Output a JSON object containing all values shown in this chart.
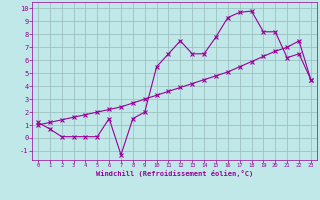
{
  "xlabel": "Windchill (Refroidissement éolien,°C)",
  "xlim": [
    -0.5,
    23.5
  ],
  "ylim": [
    -1.7,
    10.5
  ],
  "xticks": [
    0,
    1,
    2,
    3,
    4,
    5,
    6,
    7,
    8,
    9,
    10,
    11,
    12,
    13,
    14,
    15,
    16,
    17,
    18,
    19,
    20,
    21,
    22,
    23
  ],
  "yticks": [
    -1,
    0,
    1,
    2,
    3,
    4,
    5,
    6,
    7,
    8,
    9,
    10
  ],
  "bg_color": "#c0e8e8",
  "line_color": "#990099",
  "grid_color": "#99bbbb",
  "data_x": [
    0,
    1,
    2,
    3,
    4,
    5,
    6,
    7,
    8,
    9,
    10,
    11,
    12,
    13,
    14,
    15,
    16,
    17,
    18,
    19,
    20,
    21,
    22,
    23
  ],
  "data_y1": [
    1.2,
    0.7,
    0.1,
    0.1,
    0.1,
    0.1,
    1.5,
    -1.3,
    1.5,
    2.0,
    5.5,
    6.5,
    7.5,
    6.5,
    6.5,
    7.8,
    9.3,
    9.7,
    9.8,
    8.2,
    8.2,
    6.2,
    6.5,
    4.5
  ],
  "data_y2": [
    1.0,
    1.2,
    1.4,
    1.6,
    1.8,
    2.0,
    2.2,
    2.4,
    2.7,
    3.0,
    3.3,
    3.6,
    3.9,
    4.2,
    4.5,
    4.8,
    5.1,
    5.5,
    5.9,
    6.3,
    6.7,
    7.0,
    7.5,
    4.5
  ]
}
